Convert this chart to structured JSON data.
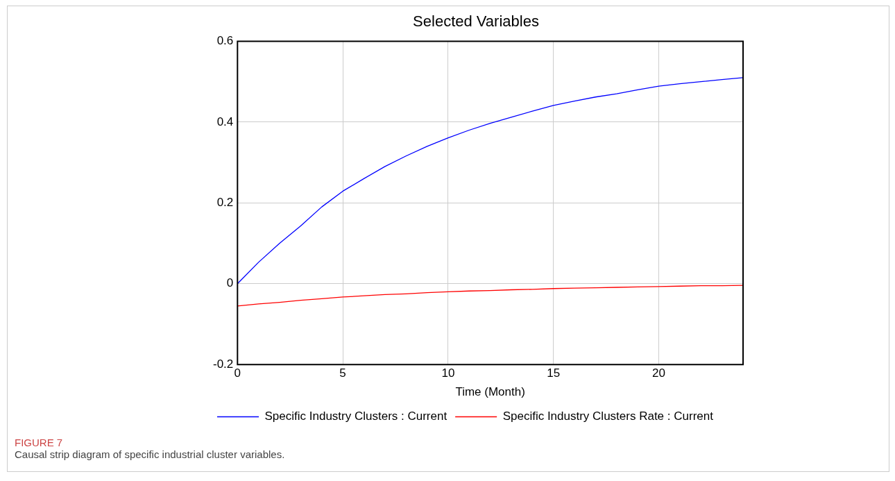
{
  "chart_data": {
    "type": "line",
    "title": "Selected Variables",
    "xlabel": "Time (Month)",
    "x": [
      0,
      1,
      2,
      3,
      4,
      5,
      6,
      7,
      8,
      9,
      10,
      11,
      12,
      13,
      14,
      15,
      16,
      17,
      18,
      19,
      20,
      21,
      22,
      23,
      24
    ],
    "xlim": [
      0,
      24
    ],
    "xticks": [
      0,
      5,
      10,
      15,
      20
    ],
    "ylim": [
      -0.2,
      0.6
    ],
    "yticks": [
      0.6,
      0.4,
      0.2,
      0,
      -0.2
    ],
    "grid": true,
    "legend": "bottom",
    "marker": "none",
    "line_style": "solid",
    "series": [
      {
        "name": "Specific Industry Clusters : Current",
        "color": "#0000ff",
        "values": [
          0,
          0.053,
          0.1,
          0.143,
          0.19,
          0.229,
          0.26,
          0.29,
          0.316,
          0.34,
          0.361,
          0.38,
          0.397,
          0.412,
          0.427,
          0.441,
          0.452,
          0.462,
          0.47,
          0.48,
          0.489,
          0.495,
          0.5,
          0.505,
          0.51
        ]
      },
      {
        "name": "Specific Industry Clusters Rate : Current",
        "color": "#ff0000",
        "values": [
          -0.055,
          -0.05,
          -0.046,
          -0.041,
          -0.037,
          -0.033,
          -0.03,
          -0.027,
          -0.025,
          -0.022,
          -0.02,
          -0.018,
          -0.017,
          -0.015,
          -0.014,
          -0.012,
          -0.011,
          -0.01,
          -0.009,
          -0.008,
          -0.007,
          -0.006,
          -0.005,
          -0.005,
          -0.004
        ]
      }
    ],
    "annotations": [
      "FIGURE 7",
      "Causal strip diagram of specific industrial cluster variables."
    ]
  }
}
